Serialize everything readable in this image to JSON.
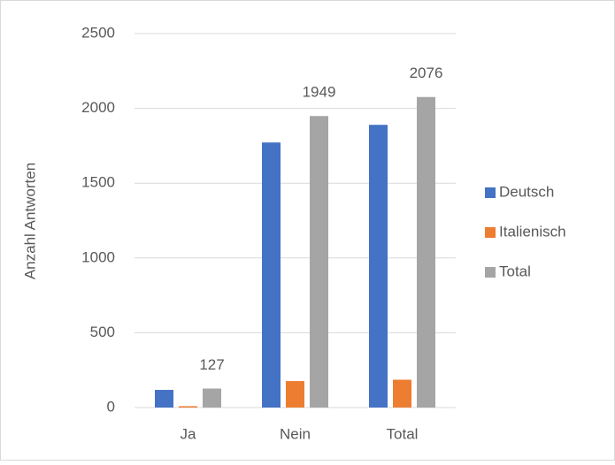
{
  "chart_data": {
    "type": "bar",
    "categories": [
      "Ja",
      "Nein",
      "Total"
    ],
    "series": [
      {
        "name": "Deutsch",
        "color": "#4472c4",
        "values": [
          118,
          1772,
          1890
        ]
      },
      {
        "name": "Italienisch",
        "color": "#ed7d31",
        "values": [
          9,
          177,
          186
        ]
      },
      {
        "name": "Total",
        "color": "#a5a5a5",
        "values": [
          127,
          1949,
          2076
        ],
        "data_labels": true
      }
    ],
    "y_label": "Anzahl Antworten",
    "ylim": [
      0,
      2500
    ],
    "yticks": [
      0,
      500,
      1000,
      1500,
      2000,
      2500
    ],
    "grid": true,
    "legend": "right"
  }
}
